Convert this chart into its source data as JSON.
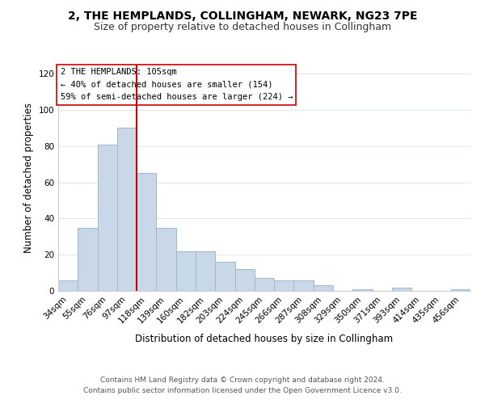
{
  "title": "2, THE HEMPLANDS, COLLINGHAM, NEWARK, NG23 7PE",
  "subtitle": "Size of property relative to detached houses in Collingham",
  "xlabel": "Distribution of detached houses by size in Collingham",
  "ylabel": "Number of detached properties",
  "bar_labels": [
    "34sqm",
    "55sqm",
    "76sqm",
    "97sqm",
    "118sqm",
    "139sqm",
    "160sqm",
    "182sqm",
    "203sqm",
    "224sqm",
    "245sqm",
    "266sqm",
    "287sqm",
    "308sqm",
    "329sqm",
    "350sqm",
    "371sqm",
    "393sqm",
    "414sqm",
    "435sqm",
    "456sqm"
  ],
  "bar_values": [
    6,
    35,
    81,
    90,
    65,
    35,
    22,
    22,
    16,
    12,
    7,
    6,
    6,
    3,
    0,
    1,
    0,
    2,
    0,
    0,
    1
  ],
  "bar_color": "#c8d8e8",
  "bar_edge_color": "#a0b8cc",
  "ylim": [
    0,
    125
  ],
  "yticks": [
    0,
    20,
    40,
    60,
    80,
    100,
    120
  ],
  "vline_x": 4.0,
  "vline_color": "#cc0000",
  "annotation_title": "2 THE HEMPLANDS: 105sqm",
  "annotation_line1": "← 40% of detached houses are smaller (154)",
  "annotation_line2": "59% of semi-detached houses are larger (224) →",
  "annotation_box_color": "#ffffff",
  "annotation_box_edge": "#cc0000",
  "footer1": "Contains HM Land Registry data © Crown copyright and database right 2024.",
  "footer2": "Contains public sector information licensed under the Open Government Licence v3.0.",
  "background_color": "#ffffff",
  "grid_color": "#dde8f0",
  "title_fontsize": 10,
  "subtitle_fontsize": 9,
  "axis_label_fontsize": 8.5,
  "tick_fontsize": 7.5,
  "footer_fontsize": 6.5
}
